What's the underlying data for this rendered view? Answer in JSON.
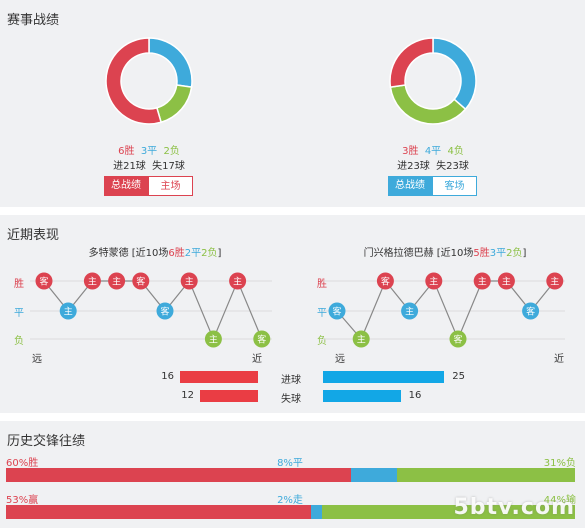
{
  "colors": {
    "win": "#dc4350",
    "draw": "#3eaadb",
    "loss": "#8cc045",
    "panel": "#f0f1f3",
    "red_bar": "#ea3d44",
    "blue_bar": "#12a7e6"
  },
  "season": {
    "title": "赛事战绩",
    "left": {
      "donut": {
        "win": 6,
        "draw": 3,
        "loss": 2
      },
      "win_text": "6胜",
      "draw_text": "3平",
      "loss_text": "2负",
      "goals_for": "进21球",
      "goals_against": "失17球",
      "btn_overall": "总战绩",
      "btn_venue": "主场"
    },
    "right": {
      "donut": {
        "win": 3,
        "draw": 4,
        "loss": 4
      },
      "win_text": "3胜",
      "draw_text": "4平",
      "loss_text": "4负",
      "goals_for": "进23球",
      "goals_against": "失23球",
      "btn_overall": "总战绩",
      "btn_venue": "客场"
    }
  },
  "recent": {
    "title": "近期表现",
    "axis": {
      "win": "胜",
      "draw": "平",
      "loss": "负",
      "far": "远",
      "near": "近"
    },
    "left": {
      "team": "多特蒙德",
      "pre": " [近10场",
      "w": "6胜",
      "d": "2平",
      "l": "2负",
      "post": "]",
      "results": [
        "W",
        "D",
        "W",
        "W",
        "W",
        "D",
        "W",
        "L",
        "W",
        "L"
      ],
      "venues": [
        "客",
        "主",
        "主",
        "主",
        "客",
        "客",
        "主",
        "主",
        "主",
        "客"
      ]
    },
    "right": {
      "team": "门兴格拉德巴赫",
      "pre": " [近10场",
      "w": "5胜",
      "d": "3平",
      "l": "2负",
      "post": "]",
      "results": [
        "D",
        "L",
        "W",
        "D",
        "W",
        "L",
        "W",
        "W",
        "D",
        "W"
      ],
      "venues": [
        "客",
        "主",
        "客",
        "主",
        "主",
        "客",
        "主",
        "主",
        "客",
        "主"
      ]
    },
    "goals": {
      "label_for": "进球",
      "label_against": "失球",
      "left_for": 16,
      "left_against": 12,
      "right_for": 25,
      "right_against": 16
    }
  },
  "history": {
    "title": "历史交锋往绩",
    "row1": {
      "left": "60%胜",
      "mid": "8%平",
      "right": "31%负",
      "win": 60,
      "draw": 8,
      "loss": 31
    },
    "row2": {
      "left": "53%赢",
      "mid": "2%走",
      "right": "44%输",
      "win": 53,
      "draw": 2,
      "loss": 44
    }
  },
  "watermark": "5btv.com"
}
